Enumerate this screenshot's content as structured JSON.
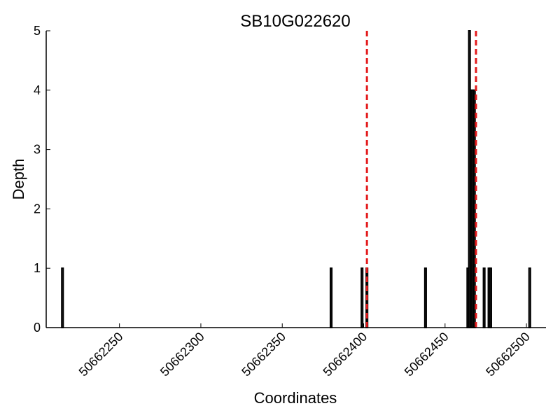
{
  "chart_data": {
    "type": "bar",
    "title": "SB10G022620",
    "xlabel": "Coordinates",
    "ylabel": "Depth",
    "xlim": [
      50662205,
      50662512
    ],
    "ylim": [
      0,
      5
    ],
    "x_ticks": [
      50662250,
      50662300,
      50662350,
      50662400,
      50662450,
      50662500
    ],
    "y_ticks": [
      0,
      1,
      2,
      3,
      4,
      5
    ],
    "x_tick_labels": [
      "50662250",
      "50662300",
      "50662350",
      "50662400",
      "50662450",
      "50662500"
    ],
    "y_tick_labels": [
      "0",
      "1",
      "2",
      "3",
      "4",
      "5"
    ],
    "grid": false,
    "bars": [
      {
        "x": 50662215,
        "depth": 1
      },
      {
        "x": 50662380,
        "depth": 1
      },
      {
        "x": 50662399,
        "depth": 1
      },
      {
        "x": 50662402,
        "depth": 1
      },
      {
        "x": 50662438,
        "depth": 1
      },
      {
        "x": 50662464,
        "depth": 1
      },
      {
        "x": 50662465,
        "depth": 5
      },
      {
        "x": 50662466,
        "depth": 4
      },
      {
        "x": 50662467,
        "depth": 4
      },
      {
        "x": 50662468,
        "depth": 4
      },
      {
        "x": 50662474,
        "depth": 1
      },
      {
        "x": 50662477,
        "depth": 1
      },
      {
        "x": 50662478,
        "depth": 1
      },
      {
        "x": 50662502,
        "depth": 1
      }
    ],
    "markers": [
      50662402,
      50662469
    ],
    "colors": {
      "bar_fill": "#7f7f7f",
      "bar_edge": "#000000",
      "marker": "#e31a1c",
      "axis": "#000000"
    }
  }
}
